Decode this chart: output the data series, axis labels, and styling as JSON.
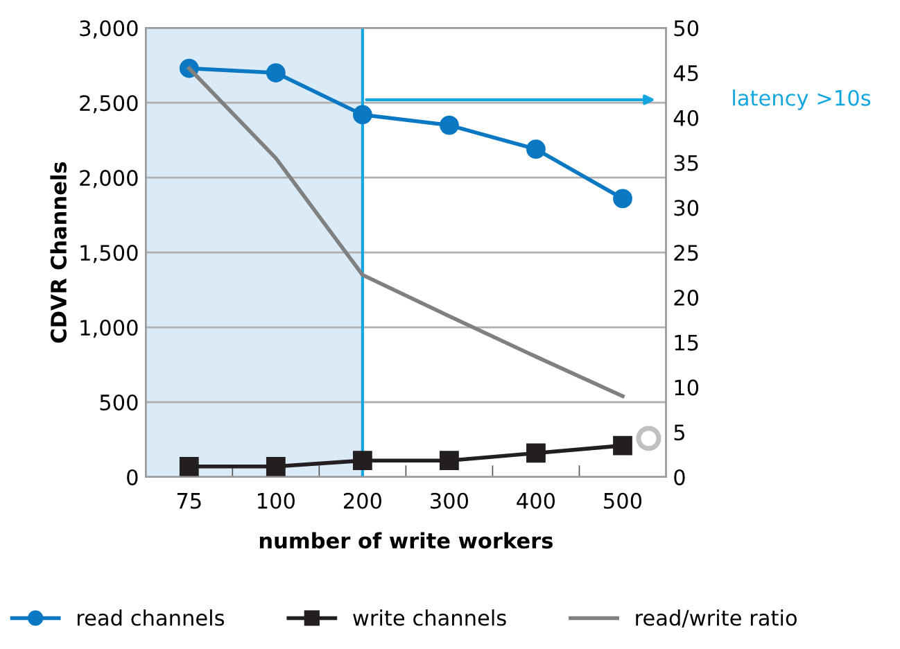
{
  "chart_data": {
    "type": "line",
    "ylabel": "CDVR Channels",
    "xlabel": "number of write workers",
    "categories": [
      "75",
      "100",
      "200",
      "300",
      "400",
      "500"
    ],
    "series": [
      {
        "name": "read channels",
        "color": "#0a78c2",
        "values": [
          2730,
          2700,
          2420,
          2350,
          2190,
          1860
        ],
        "marker": "circle"
      },
      {
        "name": "write channels",
        "color": "#231f20",
        "values": [
          70,
          70,
          110,
          110,
          160,
          210
        ],
        "marker": "square"
      },
      {
        "name": "read/write ratio",
        "color": "#808080",
        "values": [
          45.5,
          35.5,
          22.5,
          17.9,
          13.4,
          9
        ],
        "axis": "y2",
        "marker": "none"
      }
    ],
    "ylim": [
      0,
      3000
    ],
    "yticks": [
      0,
      500,
      {
        "value": 1000,
        "label": "1,000"
      },
      {
        "value": 1500,
        "label": "1,500"
      },
      {
        "value": 2000,
        "label": "2,000"
      },
      {
        "value": 2500,
        "label": "2,500"
      },
      {
        "value": 3000,
        "label": "3,000"
      }
    ],
    "y2lim": [
      0,
      50
    ],
    "y2ticks": [
      0,
      5,
      10,
      15,
      20,
      25,
      30,
      35,
      40,
      45,
      50
    ],
    "bands": [
      {
        "axis": "x",
        "from": "75",
        "to": "200",
        "color": "#daeaf6"
      }
    ],
    "ref_lines": [
      {
        "axis": "x",
        "value": "200",
        "color": "#12a6e0"
      }
    ],
    "annotations": [
      "latency >10s"
    ],
    "grid": "y",
    "legend": "bottom",
    "line_style": "solid"
  }
}
